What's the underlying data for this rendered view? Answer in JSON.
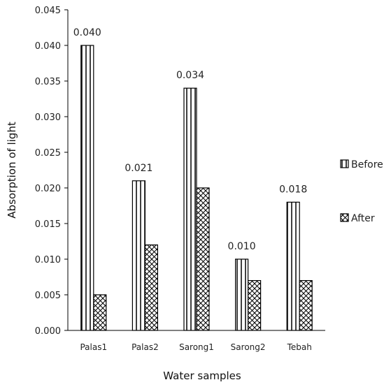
{
  "chart_data": {
    "type": "bar",
    "title": "",
    "xlabel": "Water samples",
    "ylabel": "Absorption of light",
    "categories": [
      "Palas1",
      "Palas2",
      "Sarong1",
      "Sarong2",
      "Tebah"
    ],
    "series": [
      {
        "name": "Before",
        "values": [
          0.04,
          0.021,
          0.034,
          0.01,
          0.018
        ],
        "pattern": "vertical-stripes"
      },
      {
        "name": "After",
        "values": [
          0.005,
          0.012,
          0.02,
          0.007,
          0.007
        ],
        "pattern": "crosshatch"
      }
    ],
    "data_labels": {
      "series": "Before",
      "values": [
        "0.040",
        "0.021",
        "0.034",
        "0.010",
        "0.018"
      ]
    },
    "ylim": [
      0,
      0.045
    ],
    "yticks": [
      "0.000",
      "0.005",
      "0.010",
      "0.015",
      "0.020",
      "0.025",
      "0.030",
      "0.035",
      "0.040",
      "0.045"
    ],
    "grid": false,
    "legend_position": "right",
    "colors": {
      "stroke": "#000000",
      "fill": "#ffffff",
      "text": "#222222"
    }
  }
}
